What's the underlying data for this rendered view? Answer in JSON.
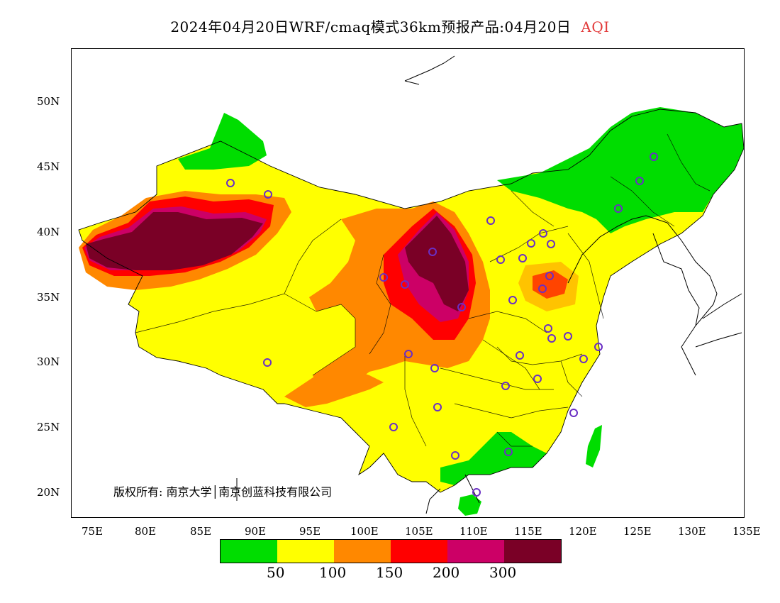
{
  "title": {
    "text": "2024年04月20日WRF/cmaq模式36km预报产品:04月20日",
    "variable": "AQI"
  },
  "map": {
    "lat_ticks": [
      "50N",
      "45N",
      "40N",
      "35N",
      "30N",
      "25N",
      "20N"
    ],
    "lon_ticks": [
      "75E",
      "80E",
      "85E",
      "90E",
      "95E",
      "100E",
      "105E",
      "110E",
      "115E",
      "120E",
      "125E",
      "130E",
      "135E"
    ],
    "copyright": "版权所有: 南京大学│南京创蓝科技有限公司"
  },
  "legend": {
    "colors": [
      "#00dd00",
      "#ffff00",
      "#ff8800",
      "#ff0000",
      "#cc0066",
      "#7a0026"
    ],
    "labels": [
      "50",
      "100",
      "150",
      "200",
      "300"
    ]
  }
}
